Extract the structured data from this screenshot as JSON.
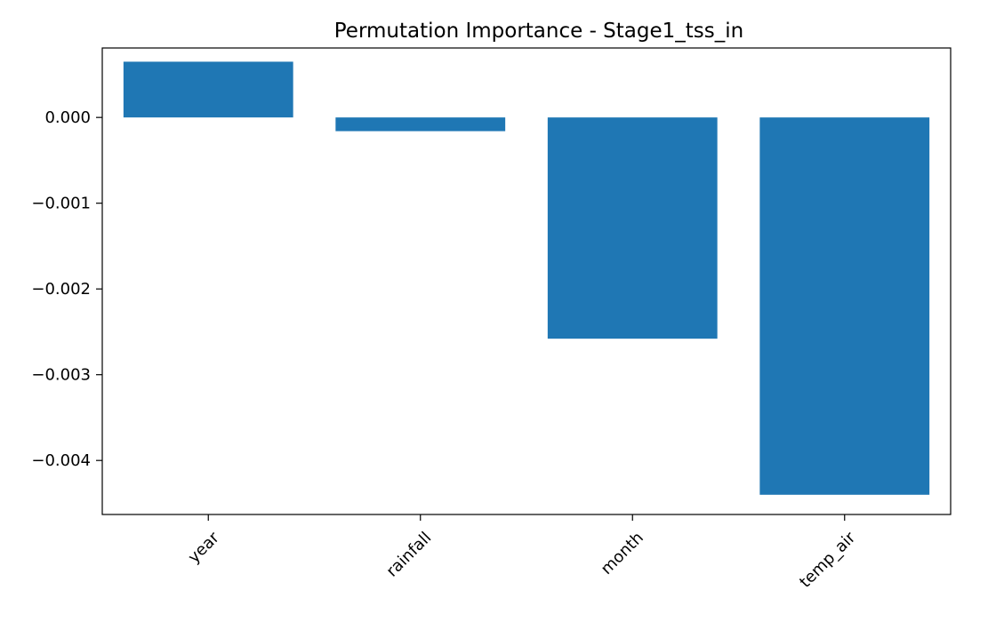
{
  "chart_data": {
    "type": "bar",
    "title": "Permutation Importance - Stage1_tss_in",
    "xlabel": "",
    "ylabel": "",
    "categories": [
      "year",
      "rainfall",
      "month",
      "temp_air"
    ],
    "values": [
      0.00065,
      -0.00016,
      -0.00258,
      -0.0044
    ],
    "ylim": [
      -0.00463,
      0.00081
    ],
    "yticks": [
      0.0,
      -0.001,
      -0.002,
      -0.003,
      -0.004
    ],
    "ytick_labels": [
      "0.000",
      "−0.001",
      "−0.002",
      "−0.003",
      "−0.004"
    ],
    "bar_color": "#1f77b4",
    "grid": false,
    "legend": "none"
  }
}
